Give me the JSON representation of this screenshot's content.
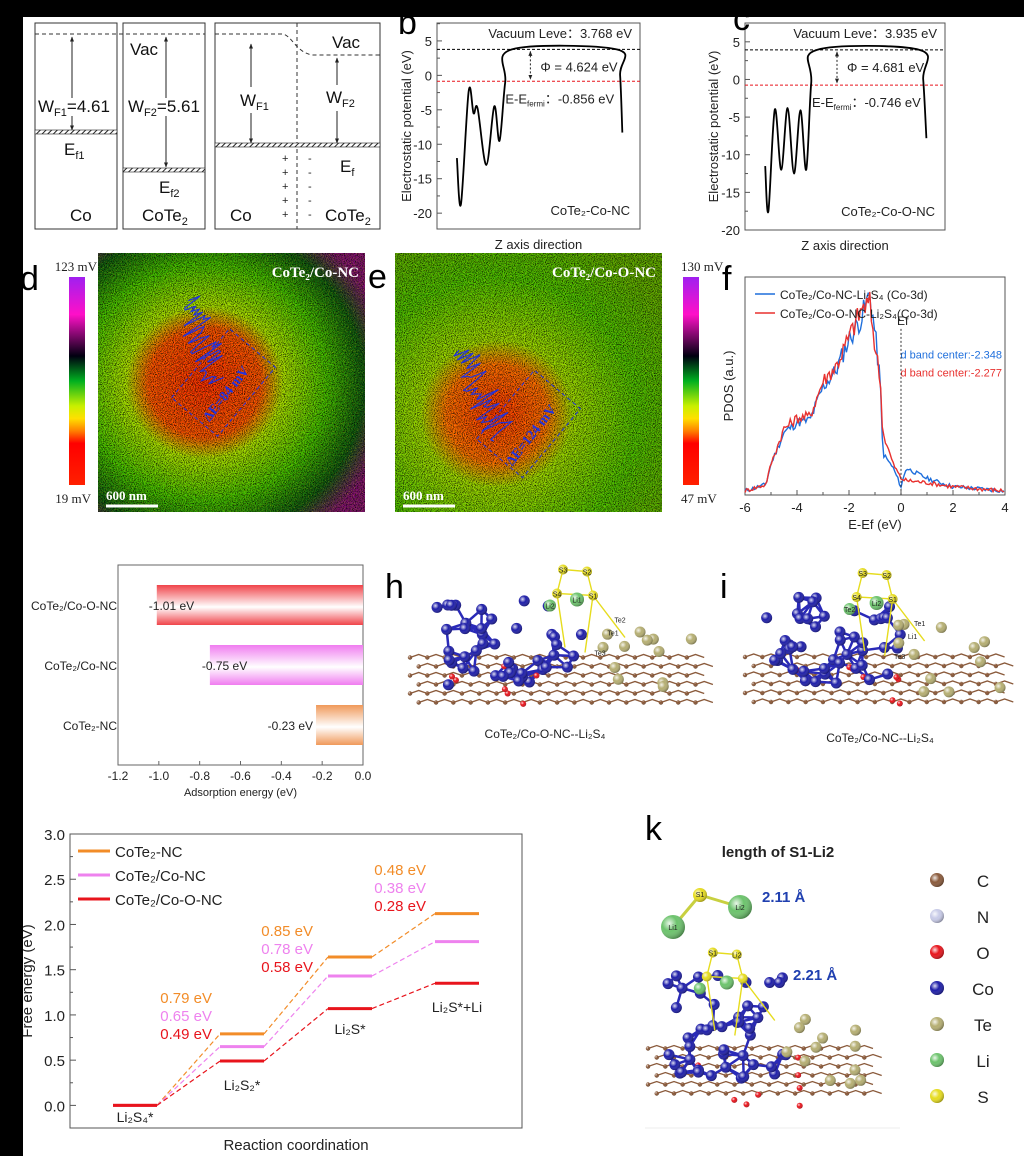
{
  "panel_labels": {
    "b": "b",
    "c": "c",
    "d": "d",
    "e": "e",
    "f": "f",
    "h": "h",
    "i": "i",
    "k": "k"
  },
  "panel_a": {
    "co": {
      "name": "Co",
      "wf": "W",
      "wf_sub": "F1",
      "wf_val": "=4.61",
      "ef": "E",
      "ef_sub": "f1"
    },
    "cote2": {
      "name": "CoTe",
      "name_sub": "2",
      "vac": "Vac",
      "wf": "W",
      "wf_sub": "F2",
      "wf_val": "=5.61",
      "ef": "E",
      "ef_sub": "f2"
    },
    "junction": {
      "vac": "Vac",
      "wf1": "W",
      "wf1_sub": "F1",
      "wf2": "W",
      "wf2_sub": "F2",
      "ef": "E",
      "ef_sub": "f",
      "left": "Co",
      "right": "CoTe",
      "right_sub": "2",
      "plus": "+",
      "minus": "-"
    }
  },
  "kpfm": {
    "d": {
      "title": "CoTe₂/Co-NC",
      "max": "123 mV",
      "min": "19 mV",
      "delta": "ΔE=84 mV",
      "scale": "600 nm"
    },
    "e": {
      "title": "CoTe₂/Co-O-NC",
      "max": "130 mV",
      "min": "47 mV",
      "delta": "ΔE=124 mV",
      "scale": "600 nm"
    }
  },
  "structures": {
    "h": {
      "caption": "CoTe₂/Co-O-NC--Li₂S₄",
      "atoms": [
        "S3",
        "S2",
        "S4",
        "Li1",
        "S1",
        "Te2",
        "Te1",
        "Li2",
        "Te3"
      ]
    },
    "i": {
      "caption": "CoTe₂/Co-NC--Li₂S₄",
      "atoms": [
        "S3",
        "S2",
        "S4",
        "Li2",
        "S1",
        "Te1",
        "Li1",
        "Te2",
        "Te3"
      ]
    },
    "k": {
      "title": "length of S1-Li2",
      "d_free": "2.11 Å",
      "d_bound": "2.21 Å",
      "mol_atoms": [
        "S1",
        "Li1",
        "Li2"
      ],
      "legend": [
        {
          "label": "C",
          "color": "#8a5a3b"
        },
        {
          "label": "N",
          "color": "#c8cbe8"
        },
        {
          "label": "O",
          "color": "#e8141c"
        },
        {
          "label": "Co",
          "color": "#1e1ea8"
        },
        {
          "label": "Te",
          "color": "#b5ae72"
        },
        {
          "label": "Li",
          "color": "#6cc36c"
        },
        {
          "label": "S",
          "color": "#e6dc1e"
        }
      ]
    }
  },
  "chart_data": [
    {
      "id": "b",
      "type": "line",
      "xlabel": "Z axis direction",
      "ylabel": "Electrostatic potential (eV)",
      "ylim": [
        -22.3,
        7.6
      ],
      "yticks": [
        -20,
        -15,
        -10,
        -5,
        0,
        5
      ],
      "grid": false,
      "x": [
        0.098,
        0.118,
        0.156,
        0.18,
        0.2,
        0.243,
        0.282,
        0.308,
        0.336,
        0.369,
        0.885,
        0.902,
        0.913
      ],
      "y": [
        -12,
        -18.7,
        -2.3,
        -5.5,
        -4.8,
        -13,
        -4.5,
        -9.5,
        -1,
        3.768,
        3.768,
        0,
        -8.3
      ],
      "vacuum_level": 3.768,
      "fermi_level": -0.856,
      "annotations": {
        "vacuum": "Vacuum Leve：3.768 eV",
        "phi": "Φ = 4.624 eV",
        "fermi_pre": "E-E",
        "fermi_sub": "fermi",
        "fermi_post": "：-0.856 eV",
        "sample": "CoTe₂-Co-NC"
      },
      "colors": {
        "curve": "#000000",
        "vacuum": "#000000",
        "fermi": "#e8141c"
      }
    },
    {
      "id": "c",
      "type": "line",
      "xlabel": "Z axis direction",
      "ylabel": "Electrostatic potential (eV)",
      "ylim": [
        -20,
        7.5
      ],
      "yticks": [
        -20,
        -15,
        -10,
        -5,
        0,
        5
      ],
      "grid": false,
      "x": [
        0.101,
        0.117,
        0.149,
        0.181,
        0.213,
        0.245,
        0.277,
        0.306,
        0.331,
        0.36,
        0.872,
        0.891,
        0.907
      ],
      "y": [
        -11.5,
        -17.5,
        -4,
        -12,
        -3.8,
        -12.5,
        -4.1,
        -12,
        -0.5,
        3.935,
        3.935,
        0,
        -7.8
      ],
      "vacuum_level": 3.935,
      "fermi_level": -0.746,
      "annotations": {
        "vacuum": "Vacuum Leve：3.935 eV",
        "phi": "Φ = 4.681 eV",
        "fermi_pre": "E-E",
        "fermi_sub": "fermi",
        "fermi_post": "：-0.746 eV",
        "sample": "CoTe₂-Co-O-NC"
      },
      "colors": {
        "curve": "#000000",
        "vacuum": "#000000",
        "fermi": "#e8141c"
      }
    },
    {
      "id": "f",
      "type": "line",
      "xlabel": "E-Ef (eV)",
      "ylabel": "PDOS (a.u.)",
      "xlim": [
        -6,
        4
      ],
      "xticks": [
        -6,
        -4,
        -2,
        0,
        2,
        4
      ],
      "ylim": [
        0,
        1.05
      ],
      "legend_position": "top-left",
      "fermi_label": "Ef",
      "series": [
        {
          "name": "CoTe₂/Co-NC-Li₂S₄  (Co-3d)",
          "color": "#1f6fdc",
          "d_band_center": "d band center:-2.348",
          "x": [
            -6,
            -5.2,
            -5,
            -4.5,
            -4,
            -3.5,
            -3,
            -2.5,
            -2,
            -1.5,
            -1.2,
            -1,
            -0.8,
            -0.7,
            -0.3,
            0,
            0.2,
            1,
            2,
            3,
            4
          ],
          "y": [
            0.02,
            0.05,
            0.15,
            0.3,
            0.35,
            0.36,
            0.52,
            0.6,
            0.75,
            0.86,
            0.97,
            0.78,
            0.55,
            0.2,
            0.13,
            0.04,
            0.13,
            0.08,
            0.04,
            0.03,
            0.02
          ]
        },
        {
          "name": "CoTe₂/Co-O-NC-Li₂S₄(Co-3d)",
          "color": "#e8312f",
          "d_band_center": "d band center:-2.277",
          "x": [
            -6,
            -5.2,
            -5,
            -4.5,
            -4,
            -3.5,
            -3,
            -2.5,
            -2,
            -1.5,
            -1.2,
            -1,
            -0.8,
            -0.7,
            -0.3,
            0,
            0.2,
            1,
            2,
            3,
            4
          ],
          "y": [
            0.02,
            0.05,
            0.15,
            0.32,
            0.37,
            0.38,
            0.55,
            0.62,
            0.76,
            0.9,
            0.92,
            0.72,
            0.56,
            0.3,
            0.15,
            0.08,
            0.07,
            0.06,
            0.04,
            0.03,
            0.02
          ]
        }
      ]
    },
    {
      "id": "g",
      "type": "bar",
      "orientation": "horizontal",
      "xlabel": "Adsorption energy (eV)",
      "xlim": [
        -1.2,
        0
      ],
      "xticks": [
        -1.2,
        -1.0,
        -0.8,
        -0.6,
        -0.4,
        -0.2,
        0.0
      ],
      "categories": [
        "CoTe₂/Co-O-NC",
        "CoTe₂/Co-NC",
        "CoTe₂-NC"
      ],
      "values": [
        -1.01,
        -0.75,
        -0.23
      ],
      "value_labels": [
        "-1.01 eV",
        "-0.75 eV",
        "-0.23 eV"
      ],
      "colors": [
        "#f0444a",
        "#f07cf0",
        "#f0995a"
      ]
    },
    {
      "id": "j",
      "type": "line",
      "subtype": "energy-profile",
      "xlabel": "Reaction coordination",
      "ylabel": "Free energy (eV)",
      "ylim": [
        -0.25,
        3.0
      ],
      "yticks": [
        0.0,
        0.5,
        1.0,
        1.5,
        2.0,
        2.5,
        3.0
      ],
      "legend_position": "top-left",
      "categories": [
        "Li₂S₄*",
        "Li₂S₂*",
        "Li₂S*",
        "Li₂S*+Li"
      ],
      "series": [
        {
          "name": "CoTe₂-NC",
          "color": "#f28c28",
          "values": [
            0,
            0.79,
            1.64,
            2.12
          ],
          "barriers": [
            "0.79 eV",
            "0.85 eV",
            "0.48 eV"
          ]
        },
        {
          "name": "CoTe₂/Co-NC",
          "color": "#ee82ee",
          "values": [
            0,
            0.65,
            1.43,
            1.81
          ],
          "barriers": [
            "0.65 eV",
            "0.78 eV",
            "0.38 eV"
          ]
        },
        {
          "name": "CoTe₂/Co-O-NC",
          "color": "#e8141c",
          "values": [
            0,
            0.49,
            1.07,
            1.35
          ],
          "barriers": [
            "0.49 eV",
            "0.58 eV",
            "0.28 eV"
          ]
        }
      ]
    }
  ]
}
